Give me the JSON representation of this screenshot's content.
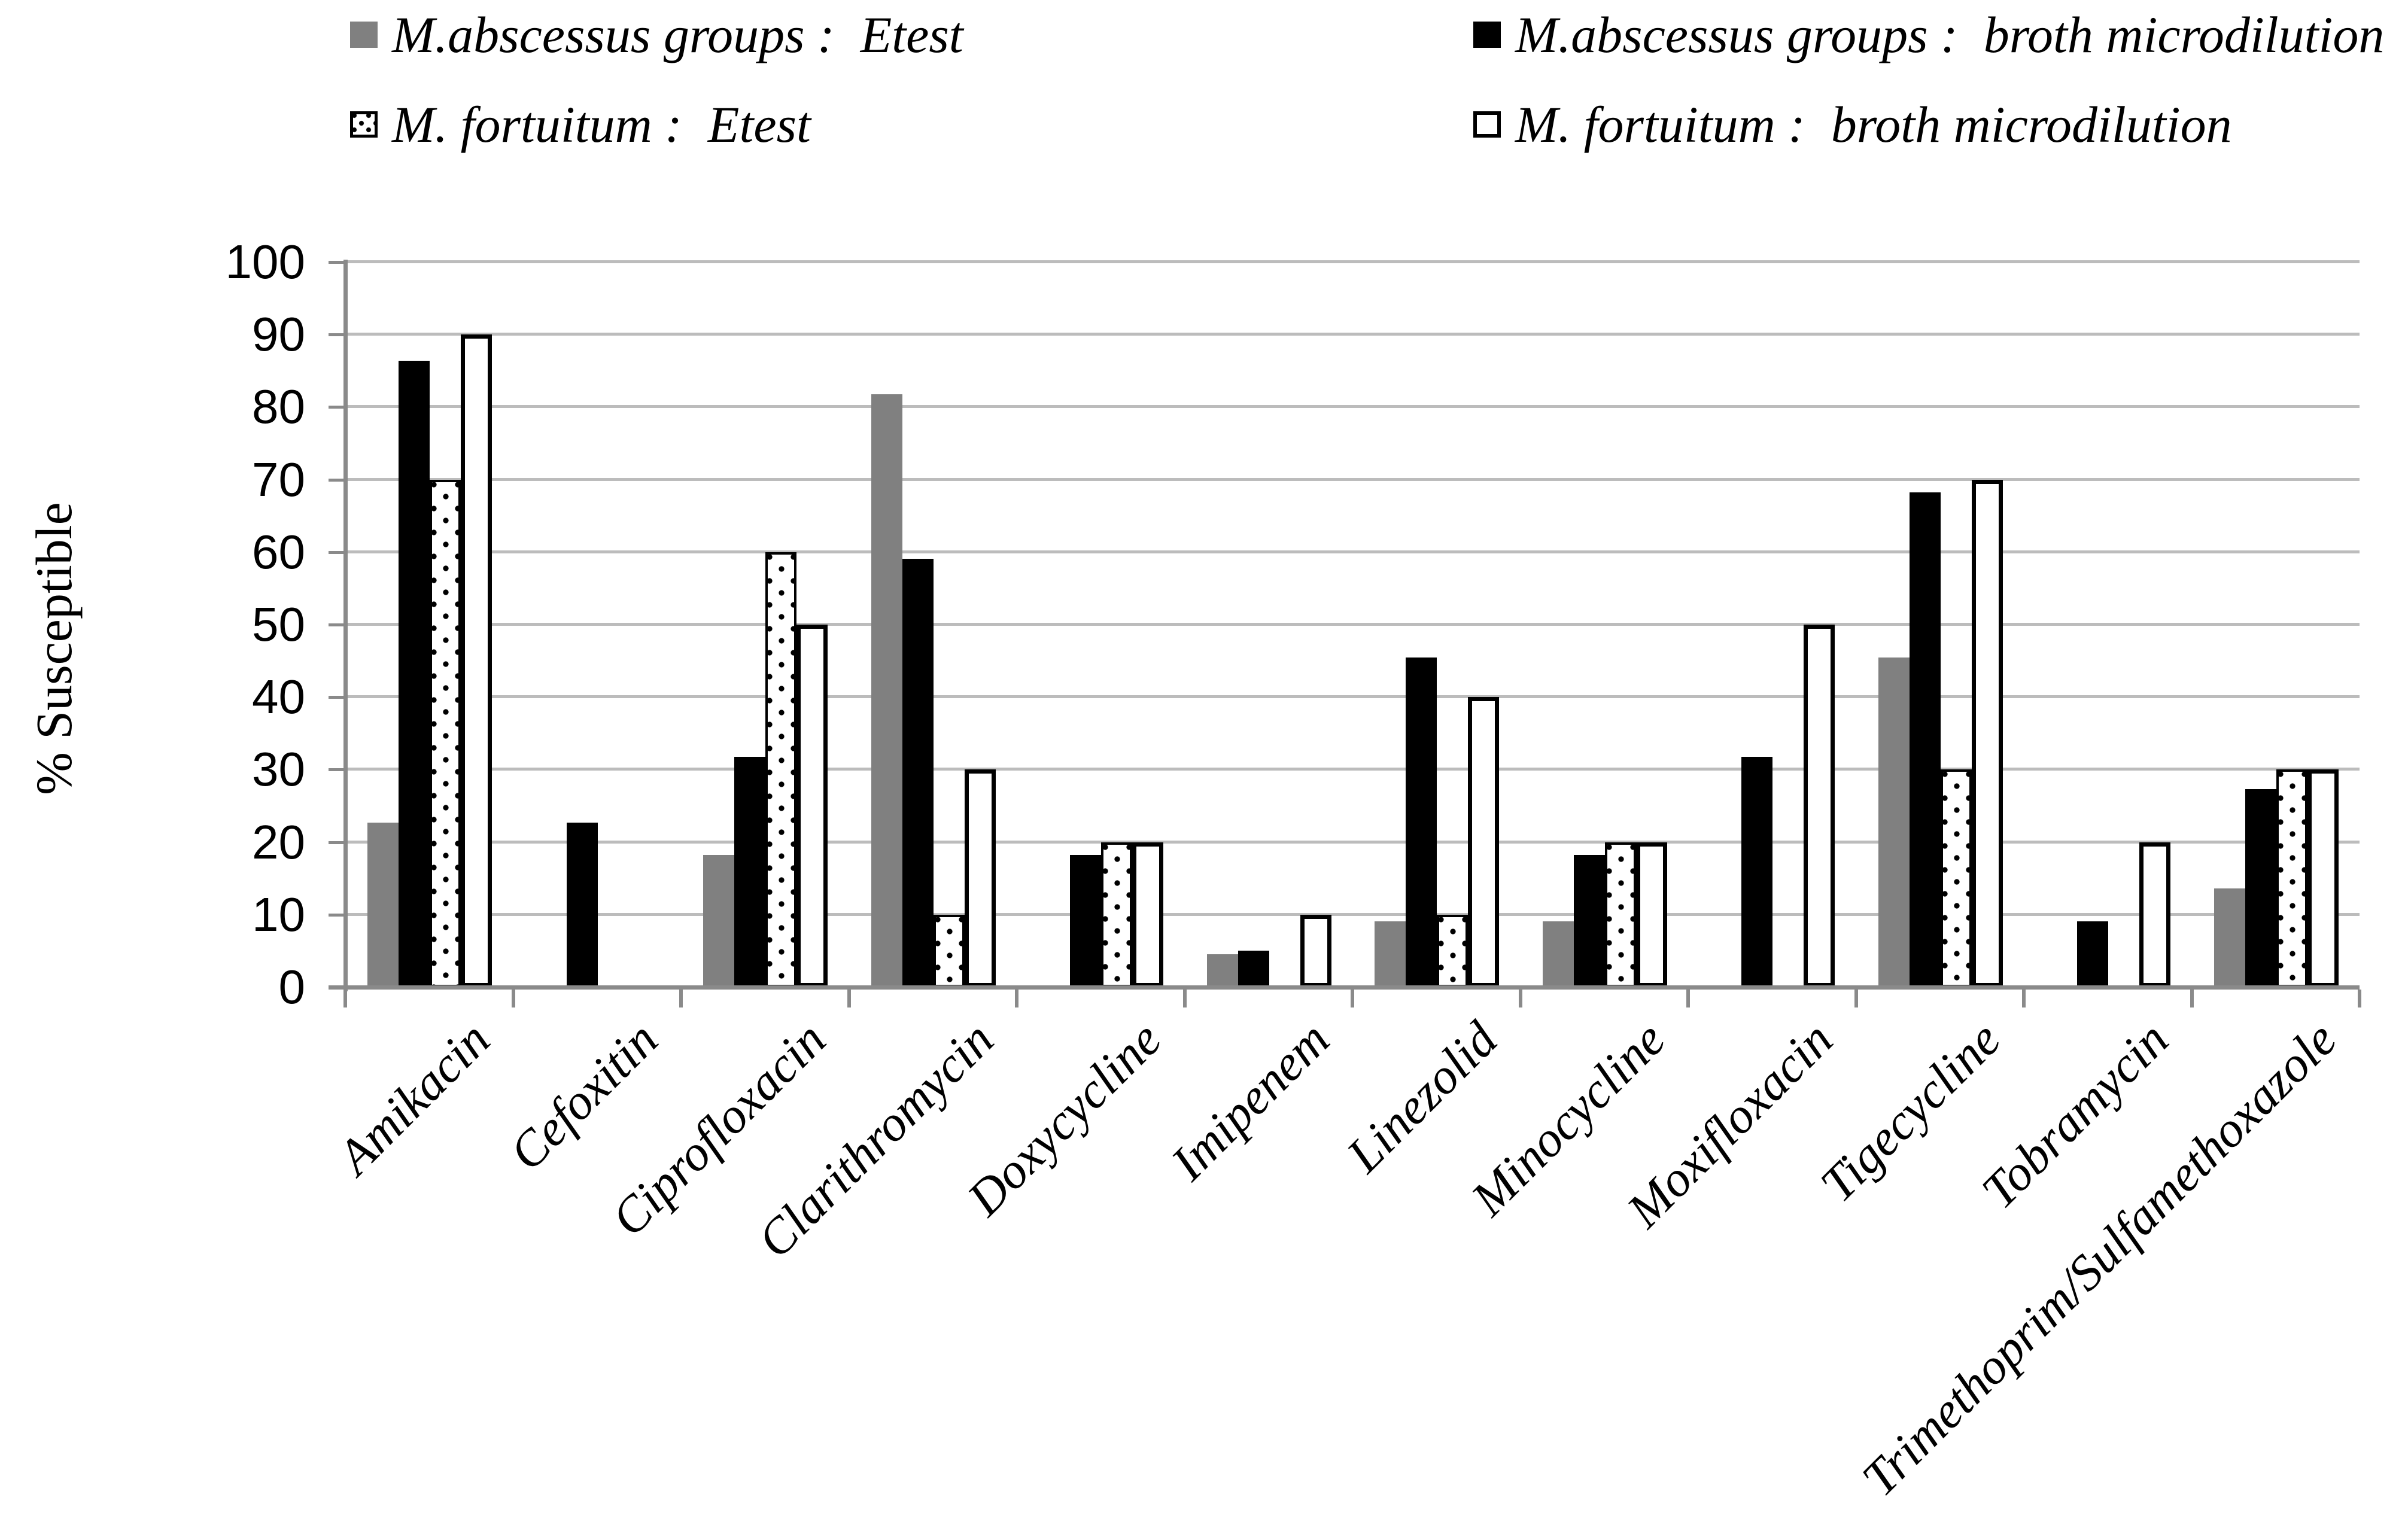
{
  "legend": {
    "items": [
      {
        "swatch": "gray",
        "label": "M.abscessus groups :  Etest"
      },
      {
        "swatch": "black",
        "label": "M.abscessus groups :  broth microdilution"
      },
      {
        "swatch": "dotted",
        "label": "M. fortuitum :  Etest"
      },
      {
        "swatch": "white",
        "label": "M. fortuitum :  broth microdilution"
      }
    ]
  },
  "chart_data": {
    "type": "bar",
    "title": "",
    "xlabel": "",
    "ylabel": "% Susceptible",
    "ylim": [
      0,
      100
    ],
    "yticks": [
      0,
      10,
      20,
      30,
      40,
      50,
      60,
      70,
      80,
      90,
      100
    ],
    "grid": true,
    "legend_position": "top",
    "categories": [
      "Amikacin",
      "Cefoxitin",
      "Ciprofloxacin",
      "Clarithromycin",
      "Doxycycline",
      "Imipenem",
      "Linezolid",
      "Minocycline",
      "Moxifloxacin",
      "Tigecycline",
      "Tobramycin",
      "Trimethoprim/Sulfamethoxazole"
    ],
    "series": [
      {
        "name": "M.abscessus groups : Etest",
        "style": "gray",
        "values": [
          22.7,
          0,
          18.2,
          81.8,
          0,
          4.5,
          9.1,
          9.1,
          0,
          45.5,
          0,
          13.6
        ]
      },
      {
        "name": "M.abscessus groups : broth microdilution",
        "style": "black",
        "values": [
          86.4,
          22.7,
          31.8,
          59.1,
          18.2,
          5,
          45.5,
          18.2,
          31.8,
          68.2,
          9.1,
          27.3
        ]
      },
      {
        "name": "M. fortuitum : Etest",
        "style": "dotted",
        "values": [
          70,
          0,
          60,
          10,
          20,
          0,
          10,
          20,
          0,
          30,
          0,
          30
        ]
      },
      {
        "name": "M. fortuitum : broth microdilution",
        "style": "white",
        "values": [
          90,
          0,
          50,
          30,
          20,
          10,
          40,
          20,
          50,
          70,
          20,
          30
        ]
      }
    ]
  },
  "colors": {
    "bar_gray": "#808080",
    "bar_black": "#000000",
    "axis": "#8a8a8a",
    "gridline": "#bcbcbc"
  }
}
